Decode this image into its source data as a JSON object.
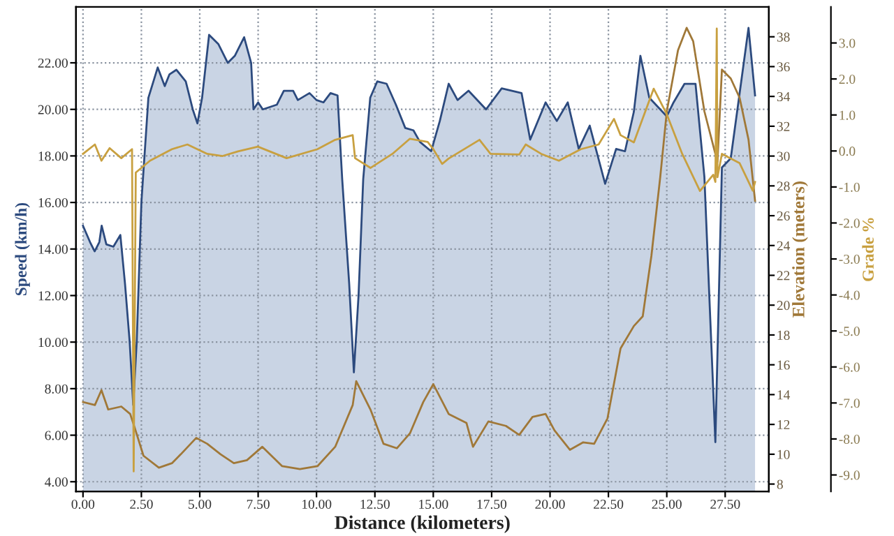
{
  "chart_data": {
    "type": "area",
    "xlabel": "Distance (kilometers)",
    "ylabel": "Speed (km/h)",
    "y2label": "Elevation (meters)",
    "y3label": "Grade %",
    "xlim": [
      -0.3,
      29.37
    ],
    "xticks": [
      {
        "value": 0,
        "label": "0.00"
      },
      {
        "value": 2.5,
        "label": "2.50"
      },
      {
        "value": 5,
        "label": "5.00"
      },
      {
        "value": 7.5,
        "label": "7.50"
      },
      {
        "value": 10,
        "label": "10.00"
      },
      {
        "value": 12.5,
        "label": "12.50"
      },
      {
        "value": 15,
        "label": "15.00"
      },
      {
        "value": 17.5,
        "label": "17.50"
      },
      {
        "value": 20,
        "label": "20.00"
      },
      {
        "value": 22.5,
        "label": "22.50"
      },
      {
        "value": 25,
        "label": "25.00"
      },
      {
        "value": 27.5,
        "label": "27.50"
      }
    ],
    "ylim": [
      3.58,
      24.4
    ],
    "yticks": [
      {
        "value": 4,
        "label": "4.00"
      },
      {
        "value": 6,
        "label": "6.00"
      },
      {
        "value": 8,
        "label": "8.00"
      },
      {
        "value": 10,
        "label": "10.00"
      },
      {
        "value": 12,
        "label": "12.00"
      },
      {
        "value": 14,
        "label": "14.00"
      },
      {
        "value": 16,
        "label": "16.00"
      },
      {
        "value": 18,
        "label": "18.00"
      },
      {
        "value": 20,
        "label": "20.00"
      },
      {
        "value": 22,
        "label": "22.00"
      }
    ],
    "y2lim": [
      7.5,
      40
    ],
    "y2ticks": [
      8,
      10,
      12,
      14,
      16,
      18,
      20,
      22,
      24,
      26,
      28,
      30,
      32,
      34,
      36,
      38
    ],
    "y3lim": [
      -9.46,
      4.0
    ],
    "y3ticks": [
      {
        "value": -9,
        "label": "-9.0"
      },
      {
        "value": -8,
        "label": "-8.0"
      },
      {
        "value": -7,
        "label": "-7.0"
      },
      {
        "value": -6,
        "label": "-6.0"
      },
      {
        "value": -5,
        "label": "-5.0"
      },
      {
        "value": -4,
        "label": "-4.0"
      },
      {
        "value": -3,
        "label": "-3.0"
      },
      {
        "value": -2,
        "label": "-2.0"
      },
      {
        "value": -1,
        "label": "-1.0"
      },
      {
        "value": 0,
        "label": "0.0"
      },
      {
        "value": 1,
        "label": "1.0"
      },
      {
        "value": 2,
        "label": "2.0"
      },
      {
        "value": 3,
        "label": "3.0"
      }
    ],
    "grid": true,
    "series": [
      {
        "color": "#2c4a7e",
        "x": [
          0,
          0.3,
          0.5,
          0.7,
          0.8,
          1.0,
          1.3,
          1.6,
          1.8,
          2.0,
          2.15,
          2.3,
          2.5,
          2.8,
          3.2,
          3.5,
          3.7,
          4.0,
          4.4,
          4.7,
          4.9,
          5.1,
          5.4,
          5.8,
          6.2,
          6.5,
          6.9,
          7.2,
          7.3,
          7.5,
          7.7,
          8.3,
          8.6,
          9.0,
          9.2,
          9.7,
          10.0,
          10.3,
          10.6,
          10.9,
          11.1,
          11.4,
          11.6,
          11.8,
          12.0,
          12.3,
          12.6,
          13.0,
          13.4,
          13.8,
          14.15,
          14.43,
          14.91,
          15.28,
          15.66,
          16.04,
          16.51,
          17.26,
          17.93,
          18.78,
          19.15,
          19.81,
          20.29,
          20.76,
          21.23,
          21.7,
          22.36,
          22.83,
          23.21,
          23.59,
          23.87,
          24.25,
          24.72,
          25.0,
          25.29,
          25.76,
          26.23,
          26.61,
          27.08,
          27.36,
          27.74,
          28.5,
          28.78
        ],
        "values": [
          15.0,
          14.3,
          13.9,
          14.3,
          15.0,
          14.2,
          14.1,
          14.6,
          12.5,
          10,
          7.3,
          10,
          16,
          20.5,
          21.8,
          21.0,
          21.5,
          21.7,
          21.2,
          20.0,
          19.4,
          20.5,
          23.2,
          22.8,
          22.0,
          22.3,
          23.1,
          22.0,
          20.0,
          20.3,
          20.0,
          20.2,
          20.8,
          20.8,
          20.4,
          20.7,
          20.4,
          20.3,
          20.7,
          20.6,
          17,
          12.5,
          8.7,
          12,
          17,
          20.5,
          21.2,
          21.1,
          20.2,
          19.2,
          19.1,
          18.6,
          18.2,
          19.5,
          21.1,
          20.4,
          20.8,
          20.0,
          20.9,
          20.7,
          18.7,
          20.3,
          19.5,
          20.3,
          18.3,
          19.3,
          16.8,
          18.3,
          18.2,
          19.9,
          22.3,
          20.5,
          20.0,
          19.7,
          20.3,
          21.1,
          21.1,
          17.1,
          5.7,
          17.5,
          17.9,
          23.5,
          20.6
        ]
      },
      {
        "type": "line",
        "axis": "y2",
        "color": "#a07838",
        "x": [
          0,
          0.51,
          0.79,
          1.08,
          1.64,
          2.02,
          2.21,
          2.59,
          3.25,
          3.81,
          4.19,
          4.85,
          5.32,
          5.89,
          6.46,
          7.02,
          7.68,
          8.53,
          9.29,
          10.04,
          10.8,
          11.55,
          11.7,
          12.31,
          12.87,
          13.44,
          14.0,
          14.57,
          15.0,
          15.66,
          16.42,
          16.7,
          17.36,
          18.11,
          18.68,
          19.25,
          19.81,
          20.19,
          20.85,
          21.42,
          21.89,
          22.46,
          23.02,
          23.59,
          23.97,
          24.34,
          24.72,
          25.0,
          25.48,
          25.85,
          26.13,
          26.61,
          27.17,
          27.36,
          27.74,
          28.12,
          28.5,
          28.78
        ],
        "values": [
          13.5,
          13.3,
          14.3,
          13.0,
          13.2,
          12.7,
          11.8,
          9.9,
          9.1,
          9.4,
          10.0,
          11.1,
          10.7,
          10.0,
          9.4,
          9.6,
          10.5,
          9.2,
          9.0,
          9.2,
          10.5,
          13.3,
          14.9,
          13.0,
          10.7,
          10.4,
          11.4,
          13.5,
          14.7,
          12.7,
          12.1,
          10.5,
          12.2,
          11.9,
          11.3,
          12.5,
          12.7,
          11.6,
          10.3,
          10.8,
          10.7,
          12.4,
          17.1,
          18.6,
          19.25,
          23.3,
          28.6,
          33.0,
          37.1,
          38.6,
          37.7,
          33,
          29.6,
          35.8,
          35.2,
          33.9,
          31.1,
          27
        ]
      },
      {
        "type": "line",
        "axis": "y3",
        "color": "#c8a040",
        "x": [
          0,
          0.51,
          0.79,
          1.14,
          1.64,
          2.1,
          2.17,
          2.26,
          2.87,
          3.81,
          4.47,
          5.32,
          5.98,
          6.64,
          7.49,
          8.72,
          10.04,
          10.8,
          11.55,
          11.65,
          12.31,
          13.25,
          14.0,
          14.76,
          15.0,
          15.38,
          15.66,
          16.98,
          17.45,
          18.68,
          18.96,
          19.62,
          20.38,
          21.32,
          22.08,
          22.74,
          23.02,
          23.59,
          24.44,
          25.0,
          25.66,
          26.42,
          26.99,
          27.08,
          27.14,
          27.17,
          27.36,
          28.12,
          28.68,
          28.78
        ],
        "values": [
          -0.08,
          0.18,
          -0.27,
          0.08,
          -0.2,
          0.05,
          -8.9,
          -0.6,
          -0.27,
          0.05,
          0.18,
          -0.08,
          -0.14,
          -0.01,
          0.12,
          -0.2,
          0.05,
          0.31,
          0.44,
          -0.2,
          -0.47,
          -0.08,
          0.34,
          0.25,
          0.05,
          -0.36,
          -0.21,
          0.31,
          -0.08,
          -0.1,
          0.18,
          -0.08,
          -0.27,
          0.05,
          0.18,
          0.89,
          0.44,
          0.24,
          1.73,
          1.02,
          -0.08,
          -1.11,
          -0.66,
          -0.86,
          3.4,
          -0.73,
          -0.08,
          -0.34,
          -1.1,
          -0.86
        ]
      }
    ]
  }
}
